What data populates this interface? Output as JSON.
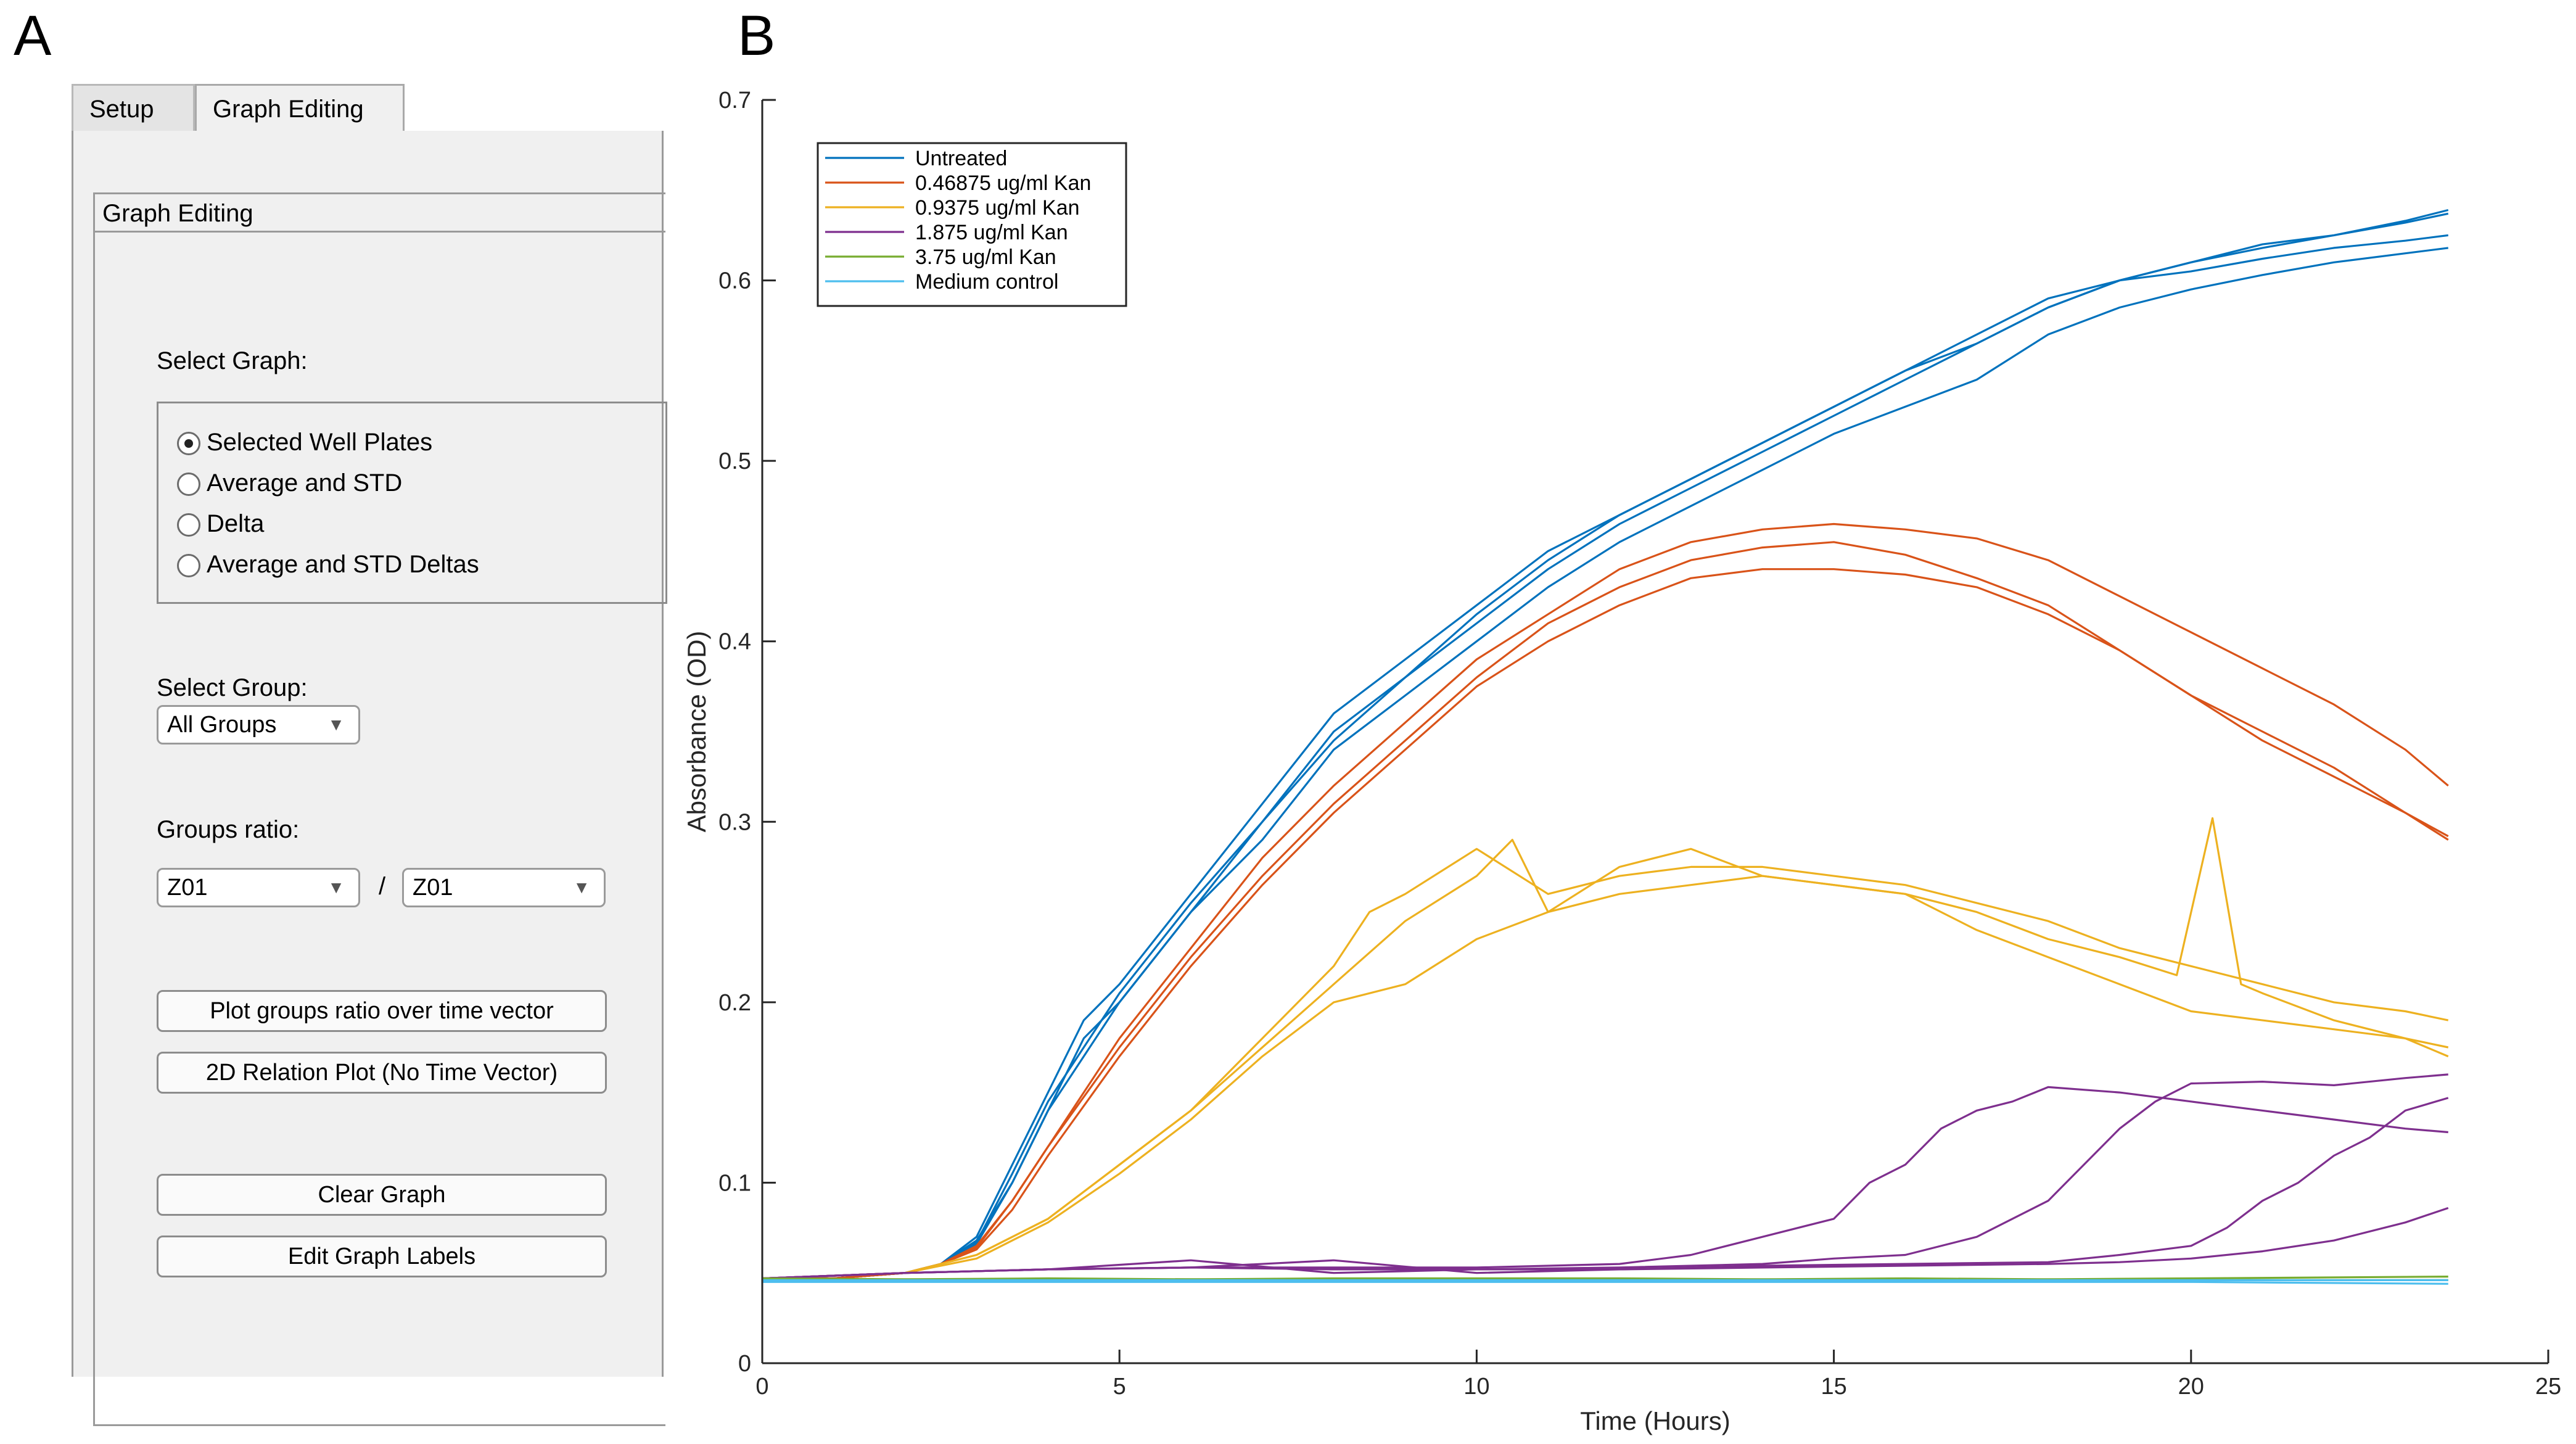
{
  "panel_labels": {
    "a": "A",
    "b": "B"
  },
  "tabs": [
    {
      "label": "Setup",
      "active": false
    },
    {
      "label": "Graph Editing",
      "active": true
    }
  ],
  "panel": {
    "group_title": "Graph Editing",
    "select_graph_label": "Select Graph:",
    "graph_options": [
      {
        "label": "Selected Well Plates",
        "selected": true
      },
      {
        "label": "Average and STD",
        "selected": false
      },
      {
        "label": "Delta",
        "selected": false
      },
      {
        "label": "Average and STD Deltas",
        "selected": false
      }
    ],
    "select_group_label": "Select Group:",
    "group_value": "All Groups",
    "groups_ratio_label": "Groups ratio:",
    "ratio_numerator": "Z01",
    "ratio_separator": "/",
    "ratio_denominator": "Z01",
    "buttons": {
      "plot_ratio": "Plot groups ratio over time vector",
      "relation_2d": "2D Relation Plot (No Time Vector)",
      "clear": "Clear Graph",
      "edit_labels": "Edit Graph Labels"
    }
  },
  "chart_data": {
    "type": "line",
    "xlabel": "Time (Hours)",
    "ylabel": "Absorbance (OD)",
    "xlim": [
      0,
      25
    ],
    "ylim": [
      0,
      0.7
    ],
    "xticks": [
      0,
      5,
      10,
      15,
      20,
      25
    ],
    "yticks": [
      0,
      0.1,
      0.2,
      0.3,
      0.4,
      0.5,
      0.6,
      0.7
    ],
    "legend_position": "top-left",
    "series": [
      {
        "name": "Untreated",
        "color": "#0072BD",
        "show_in_legend": true,
        "x": [
          0,
          1,
          2,
          2.5,
          3,
          3.5,
          4,
          4.5,
          5,
          6,
          7,
          8,
          9,
          10,
          11,
          12,
          13,
          14,
          15,
          16,
          17,
          18,
          19,
          20,
          21,
          22,
          23,
          23.6
        ],
        "y": [
          0.047,
          0.047,
          0.05,
          0.055,
          0.07,
          0.11,
          0.15,
          0.19,
          0.21,
          0.26,
          0.31,
          0.36,
          0.39,
          0.42,
          0.45,
          0.47,
          0.49,
          0.51,
          0.53,
          0.55,
          0.57,
          0.59,
          0.6,
          0.61,
          0.62,
          0.625,
          0.632,
          0.637
        ]
      },
      {
        "name": "Untreated",
        "color": "#0072BD",
        "show_in_legend": false,
        "x": [
          0,
          1,
          2,
          2.5,
          3,
          3.5,
          4,
          4.5,
          5,
          6,
          7,
          8,
          9,
          10,
          11,
          12,
          13,
          14,
          15,
          16,
          17,
          18,
          19,
          20,
          21,
          22,
          23,
          23.6
        ],
        "y": [
          0.047,
          0.047,
          0.05,
          0.055,
          0.068,
          0.1,
          0.14,
          0.18,
          0.2,
          0.25,
          0.3,
          0.35,
          0.38,
          0.41,
          0.44,
          0.465,
          0.485,
          0.505,
          0.525,
          0.545,
          0.565,
          0.585,
          0.6,
          0.61,
          0.618,
          0.625,
          0.633,
          0.639
        ]
      },
      {
        "name": "Untreated",
        "color": "#0072BD",
        "show_in_legend": false,
        "x": [
          0,
          1,
          2,
          2.5,
          3,
          3.5,
          4,
          4.5,
          5,
          6,
          7,
          8,
          9,
          10,
          11,
          12,
          13,
          14,
          15,
          16,
          17,
          18,
          19,
          20,
          21,
          22,
          23,
          23.6
        ],
        "y": [
          0.047,
          0.047,
          0.05,
          0.055,
          0.066,
          0.1,
          0.14,
          0.17,
          0.2,
          0.25,
          0.29,
          0.34,
          0.37,
          0.4,
          0.43,
          0.455,
          0.475,
          0.495,
          0.515,
          0.53,
          0.545,
          0.57,
          0.585,
          0.595,
          0.603,
          0.61,
          0.615,
          0.618
        ]
      },
      {
        "name": "Untreated",
        "color": "#0072BD",
        "show_in_legend": false,
        "x": [
          0,
          1,
          2,
          2.5,
          3,
          3.5,
          4,
          4.5,
          5,
          6,
          7,
          8,
          9,
          10,
          11,
          12,
          13,
          14,
          15,
          16,
          17,
          18,
          19,
          20,
          21,
          22,
          23,
          23.6
        ],
        "y": [
          0.047,
          0.047,
          0.05,
          0.055,
          0.067,
          0.105,
          0.145,
          0.175,
          0.205,
          0.255,
          0.3,
          0.345,
          0.38,
          0.415,
          0.445,
          0.47,
          0.49,
          0.51,
          0.53,
          0.55,
          0.565,
          0.585,
          0.6,
          0.605,
          0.612,
          0.618,
          0.622,
          0.625
        ]
      },
      {
        "name": "0.46875 ug/ml Kan",
        "color": "#D95319",
        "show_in_legend": true,
        "x": [
          0,
          1,
          2,
          2.5,
          3,
          3.5,
          4,
          5,
          6,
          7,
          8,
          9,
          10,
          11,
          12,
          13,
          14,
          15,
          16,
          17,
          18,
          19,
          20,
          21,
          22,
          23,
          23.6
        ],
        "y": [
          0.047,
          0.047,
          0.05,
          0.055,
          0.065,
          0.09,
          0.12,
          0.18,
          0.23,
          0.28,
          0.32,
          0.355,
          0.39,
          0.415,
          0.44,
          0.455,
          0.462,
          0.465,
          0.462,
          0.457,
          0.445,
          0.425,
          0.405,
          0.385,
          0.365,
          0.34,
          0.32
        ]
      },
      {
        "name": "0.46875 ug/ml Kan",
        "color": "#D95319",
        "show_in_legend": false,
        "x": [
          0,
          1,
          2,
          2.5,
          3,
          3.5,
          4,
          5,
          6,
          7,
          8,
          9,
          10,
          11,
          12,
          13,
          14,
          15,
          16,
          17,
          18,
          19,
          20,
          21,
          22,
          23,
          23.6
        ],
        "y": [
          0.047,
          0.047,
          0.05,
          0.055,
          0.064,
          0.09,
          0.12,
          0.175,
          0.225,
          0.27,
          0.31,
          0.345,
          0.38,
          0.41,
          0.43,
          0.445,
          0.452,
          0.455,
          0.448,
          0.435,
          0.42,
          0.395,
          0.37,
          0.35,
          0.33,
          0.305,
          0.292
        ]
      },
      {
        "name": "0.46875 ug/ml Kan",
        "color": "#D95319",
        "show_in_legend": false,
        "x": [
          0,
          1,
          2,
          2.5,
          3,
          3.5,
          4,
          5,
          6,
          7,
          8,
          9,
          10,
          11,
          12,
          13,
          14,
          15,
          16,
          17,
          18,
          19,
          20,
          21,
          22,
          23,
          23.6
        ],
        "y": [
          0.047,
          0.047,
          0.05,
          0.055,
          0.063,
          0.085,
          0.115,
          0.17,
          0.22,
          0.265,
          0.305,
          0.34,
          0.375,
          0.4,
          0.42,
          0.435,
          0.44,
          0.44,
          0.437,
          0.43,
          0.415,
          0.395,
          0.37,
          0.345,
          0.325,
          0.305,
          0.29
        ]
      },
      {
        "name": "0.9375 ug/ml Kan",
        "color": "#EDB120",
        "show_in_legend": true,
        "x": [
          0,
          2,
          3,
          4,
          5,
          6,
          7,
          8,
          8.5,
          9,
          10,
          11,
          12,
          13,
          14,
          15,
          16,
          17,
          18,
          19,
          20,
          21,
          22,
          23,
          23.6
        ],
        "y": [
          0.047,
          0.05,
          0.06,
          0.08,
          0.11,
          0.14,
          0.18,
          0.22,
          0.25,
          0.26,
          0.285,
          0.26,
          0.27,
          0.275,
          0.275,
          0.27,
          0.265,
          0.255,
          0.245,
          0.23,
          0.22,
          0.21,
          0.2,
          0.195,
          0.19
        ]
      },
      {
        "name": "0.9375 ug/ml Kan",
        "color": "#EDB120",
        "show_in_legend": false,
        "x": [
          0,
          2,
          3,
          4,
          5,
          6,
          7,
          8,
          9,
          10,
          10.5,
          11,
          12,
          13,
          14,
          15,
          16,
          17,
          18,
          19,
          19.8,
          20.3,
          20.7,
          21,
          22,
          23,
          23.6
        ],
        "y": [
          0.047,
          0.05,
          0.06,
          0.08,
          0.11,
          0.14,
          0.175,
          0.21,
          0.245,
          0.27,
          0.29,
          0.25,
          0.275,
          0.285,
          0.27,
          0.265,
          0.26,
          0.25,
          0.235,
          0.225,
          0.215,
          0.302,
          0.21,
          0.205,
          0.19,
          0.18,
          0.175
        ]
      },
      {
        "name": "0.9375 ug/ml Kan",
        "color": "#EDB120",
        "show_in_legend": false,
        "x": [
          0,
          2,
          3,
          4,
          5,
          6,
          7,
          8,
          9,
          10,
          11,
          12,
          13,
          14,
          15,
          16,
          17,
          18,
          19,
          20,
          21,
          22,
          23,
          23.6
        ],
        "y": [
          0.047,
          0.05,
          0.058,
          0.078,
          0.105,
          0.135,
          0.17,
          0.2,
          0.21,
          0.235,
          0.25,
          0.26,
          0.265,
          0.27,
          0.265,
          0.26,
          0.24,
          0.225,
          0.21,
          0.195,
          0.19,
          0.185,
          0.18,
          0.17
        ]
      },
      {
        "name": "1.875 ug/ml Kan",
        "color": "#7E2F8E",
        "show_in_legend": true,
        "x": [
          0,
          2,
          4,
          6,
          8,
          10,
          12,
          13,
          14,
          15,
          15.5,
          16,
          16.5,
          17,
          17.5,
          18,
          19,
          20,
          21,
          22,
          23,
          23.6
        ],
        "y": [
          0.047,
          0.05,
          0.052,
          0.053,
          0.053,
          0.053,
          0.055,
          0.06,
          0.07,
          0.08,
          0.1,
          0.11,
          0.13,
          0.14,
          0.145,
          0.153,
          0.15,
          0.145,
          0.14,
          0.135,
          0.13,
          0.128
        ]
      },
      {
        "name": "1.875 ug/ml Kan",
        "color": "#7E2F8E",
        "show_in_legend": false,
        "x": [
          0,
          2,
          4,
          6,
          8,
          10,
          12,
          14,
          15,
          16,
          17,
          18,
          18.5,
          19,
          19.5,
          20,
          21,
          22,
          23,
          23.6
        ],
        "y": [
          0.047,
          0.05,
          0.052,
          0.057,
          0.05,
          0.052,
          0.053,
          0.055,
          0.058,
          0.06,
          0.07,
          0.09,
          0.11,
          0.13,
          0.145,
          0.155,
          0.156,
          0.154,
          0.158,
          0.16
        ]
      },
      {
        "name": "1.875 ug/ml Kan",
        "color": "#7E2F8E",
        "show_in_legend": false,
        "x": [
          0,
          2,
          4,
          6,
          8,
          10,
          12,
          14,
          16,
          18,
          19,
          20,
          20.5,
          21,
          21.5,
          22,
          22.5,
          23,
          23.6
        ],
        "y": [
          0.047,
          0.05,
          0.052,
          0.053,
          0.057,
          0.05,
          0.052,
          0.054,
          0.055,
          0.056,
          0.06,
          0.065,
          0.075,
          0.09,
          0.1,
          0.115,
          0.125,
          0.14,
          0.147
        ]
      },
      {
        "name": "1.875 ug/ml Kan",
        "color": "#7E2F8E",
        "show_in_legend": false,
        "x": [
          0,
          2,
          4,
          6,
          8,
          10,
          12,
          14,
          16,
          18,
          19,
          20,
          21,
          22,
          23,
          23.6
        ],
        "y": [
          0.047,
          0.05,
          0.052,
          0.053,
          0.052,
          0.052,
          0.052,
          0.053,
          0.054,
          0.055,
          0.056,
          0.058,
          0.062,
          0.068,
          0.078,
          0.086
        ]
      },
      {
        "name": "3.75 ug/ml Kan",
        "color": "#77AC30",
        "show_in_legend": true,
        "x": [
          0,
          4,
          8,
          12,
          16,
          20,
          23.6
        ],
        "y": [
          0.047,
          0.046,
          0.047,
          0.047,
          0.046,
          0.047,
          0.048
        ]
      },
      {
        "name": "3.75 ug/ml Kan",
        "color": "#77AC30",
        "show_in_legend": false,
        "x": [
          0,
          4,
          8,
          12,
          16,
          20,
          23.6
        ],
        "y": [
          0.046,
          0.047,
          0.046,
          0.046,
          0.047,
          0.046,
          0.046
        ]
      },
      {
        "name": "Medium control",
        "color": "#4DBEEE",
        "show_in_legend": true,
        "x": [
          0,
          4,
          8,
          12,
          16,
          20,
          23.6
        ],
        "y": [
          0.045,
          0.045,
          0.045,
          0.045,
          0.045,
          0.045,
          0.044
        ]
      },
      {
        "name": "Medium control",
        "color": "#4DBEEE",
        "show_in_legend": false,
        "x": [
          0,
          4,
          8,
          12,
          16,
          20,
          23.6
        ],
        "y": [
          0.046,
          0.046,
          0.046,
          0.046,
          0.046,
          0.046,
          0.046
        ]
      }
    ]
  }
}
